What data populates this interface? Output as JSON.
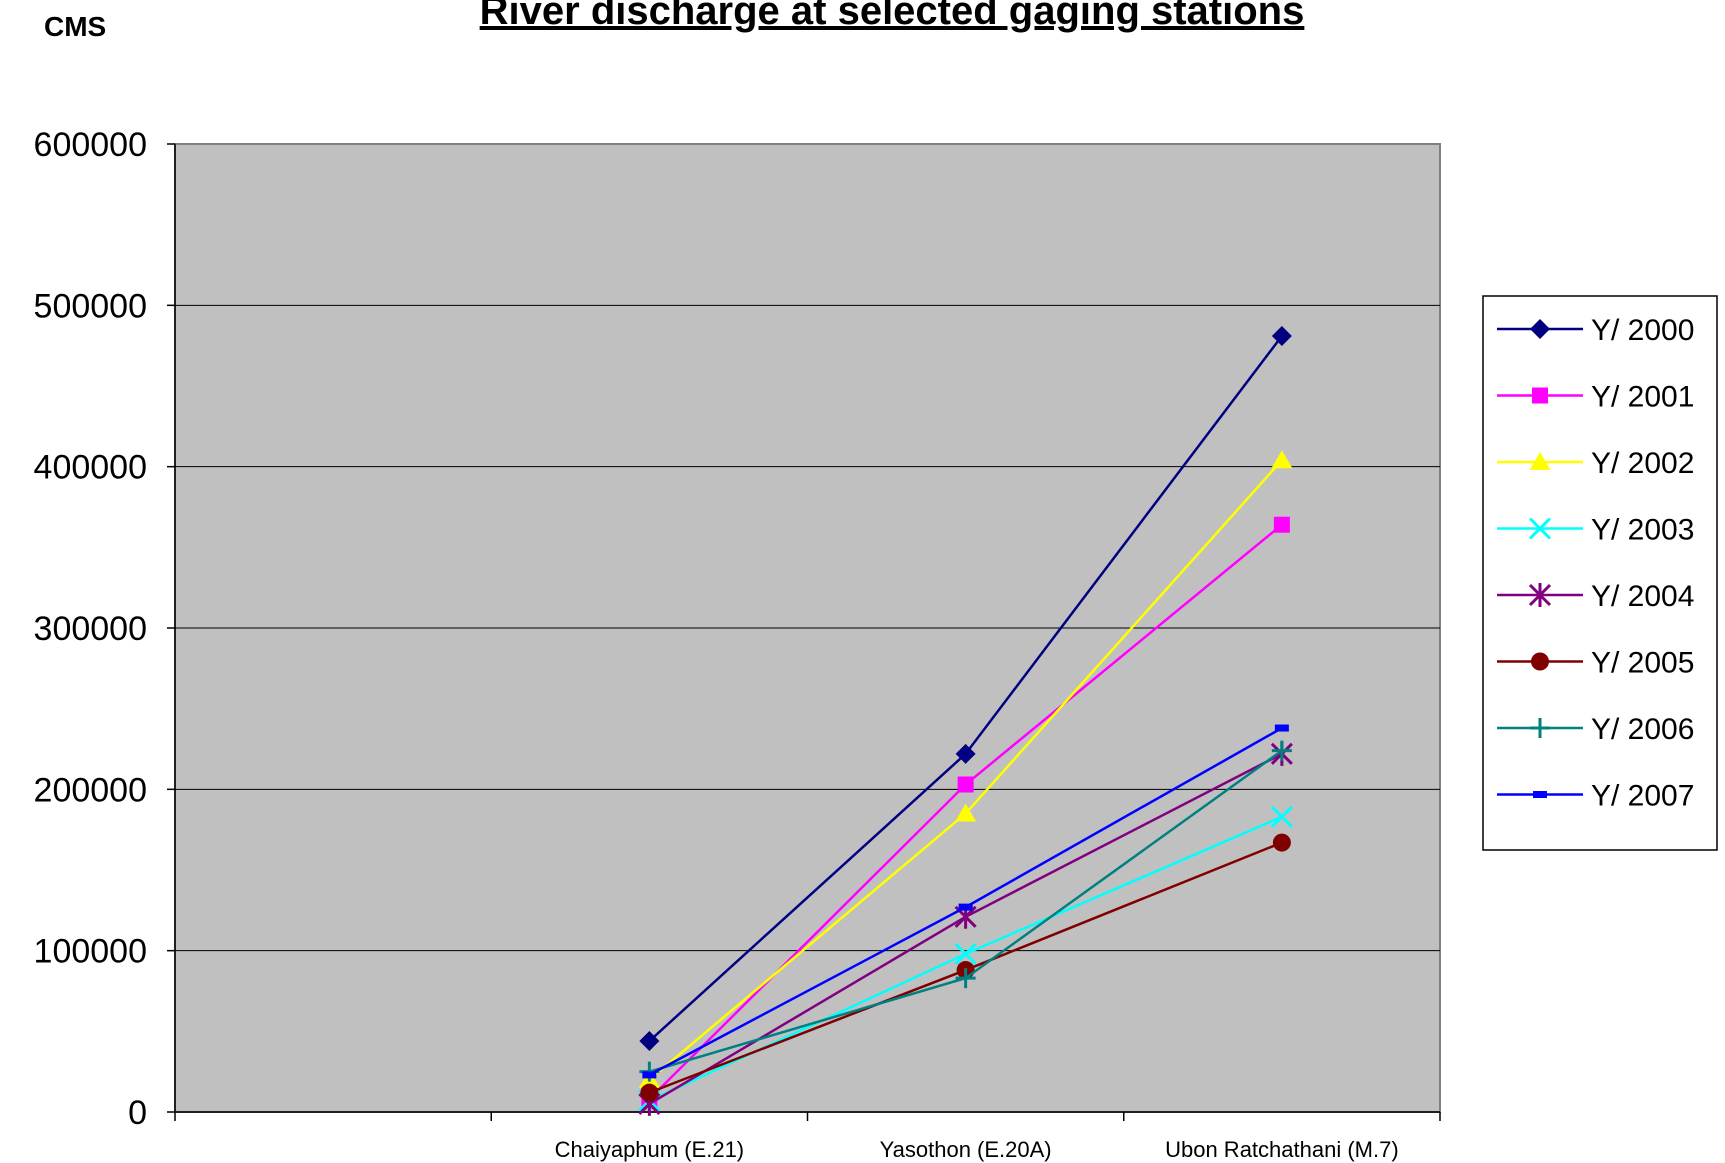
{
  "chart_data": {
    "type": "line",
    "title": "River discharge at selected gaging stations",
    "ylabel": "CMS",
    "xlabel": "",
    "categories": [
      "",
      "Chaiyaphum (E.21)",
      "Yasothon (E.20A)",
      "Ubon Ratchathani (M.7)"
    ],
    "ylim": [
      0,
      600000
    ],
    "yticks": [
      0,
      100000,
      200000,
      300000,
      400000,
      500000,
      600000
    ],
    "grid": true,
    "legend_position": "right",
    "series": [
      {
        "name": "Y/ 2000",
        "color": "#000080",
        "marker": "diamond",
        "values": [
          null,
          44000,
          222000,
          481000
        ]
      },
      {
        "name": "Y/ 2001",
        "color": "#FF00FF",
        "marker": "square",
        "values": [
          null,
          8000,
          203000,
          364000
        ]
      },
      {
        "name": "Y/ 2002",
        "color": "#FFFF00",
        "marker": "triangle",
        "values": [
          null,
          20000,
          185000,
          404000
        ]
      },
      {
        "name": "Y/ 2003",
        "color": "#00FFFF",
        "marker": "x",
        "values": [
          null,
          7000,
          98000,
          183000
        ]
      },
      {
        "name": "Y/ 2004",
        "color": "#800080",
        "marker": "star",
        "values": [
          null,
          5000,
          121000,
          222000
        ]
      },
      {
        "name": "Y/ 2005",
        "color": "#800000",
        "marker": "circle",
        "values": [
          null,
          12000,
          88000,
          167000
        ]
      },
      {
        "name": "Y/ 2006",
        "color": "#008080",
        "marker": "plus",
        "values": [
          null,
          25000,
          83000,
          224000
        ]
      },
      {
        "name": "Y/ 2007",
        "color": "#0000FF",
        "marker": "dash",
        "values": [
          null,
          23000,
          127000,
          238000
        ]
      }
    ],
    "plot_background": "#C0C0C0"
  }
}
